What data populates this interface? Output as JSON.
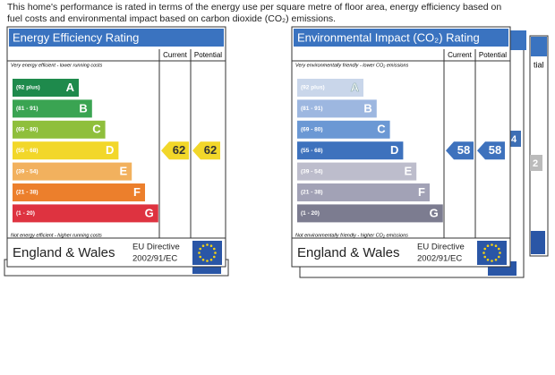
{
  "intro": [
    "This home's performance is rated in terms of the energy use per square metre of floor area, energy efficiency based on",
    "fuel costs and environmental impact based on carbon dioxide (CO₂) emissions."
  ],
  "panels": [
    {
      "title": "Energy Efficiency Rating",
      "columns": [
        "Current",
        "Potential"
      ],
      "top_note": "Very energy efficient - lower running costs",
      "bands": [
        {
          "range": "(92 plus)",
          "letter": "A"
        },
        {
          "range": "(81 - 91)",
          "letter": "B"
        },
        {
          "range": "(69 - 80)",
          "letter": "C"
        },
        {
          "range": "(55 - 68)",
          "letter": "D"
        },
        {
          "range": "(39 - 54)",
          "letter": "E"
        },
        {
          "range": "(21 - 38)",
          "letter": "F"
        },
        {
          "range": "(1 - 20)",
          "letter": "G"
        }
      ],
      "bottom_note": "Not energy efficient - higher running costs",
      "region": "England & Wales",
      "directive": [
        "EU Directive",
        "2002/91/EC"
      ],
      "current": 62,
      "potential": 62
    },
    {
      "title": "Environmental Impact (CO₂) Rating",
      "columns": [
        "Current",
        "Potential"
      ],
      "top_note": "Very environmentally friendly - lower CO₂ emissions",
      "bands": [
        {
          "range": "(92 plus)",
          "letter": "A"
        },
        {
          "range": "(81 - 91)",
          "letter": "B"
        },
        {
          "range": "(69 - 80)",
          "letter": "C"
        },
        {
          "range": "(55 - 68)",
          "letter": "D"
        },
        {
          "range": "(39 - 54)",
          "letter": "E"
        },
        {
          "range": "(21 - 38)",
          "letter": "F"
        },
        {
          "range": "(1 - 20)",
          "letter": "G"
        }
      ],
      "bottom_note": "Not environmentally friendly - higher CO₂ emissions",
      "region": "England & Wales",
      "directive": [
        "EU Directive",
        "2002/91/EC"
      ],
      "current": 58,
      "potential": 58
    }
  ],
  "fragments": [
    "tial",
    "4",
    "2"
  ]
}
